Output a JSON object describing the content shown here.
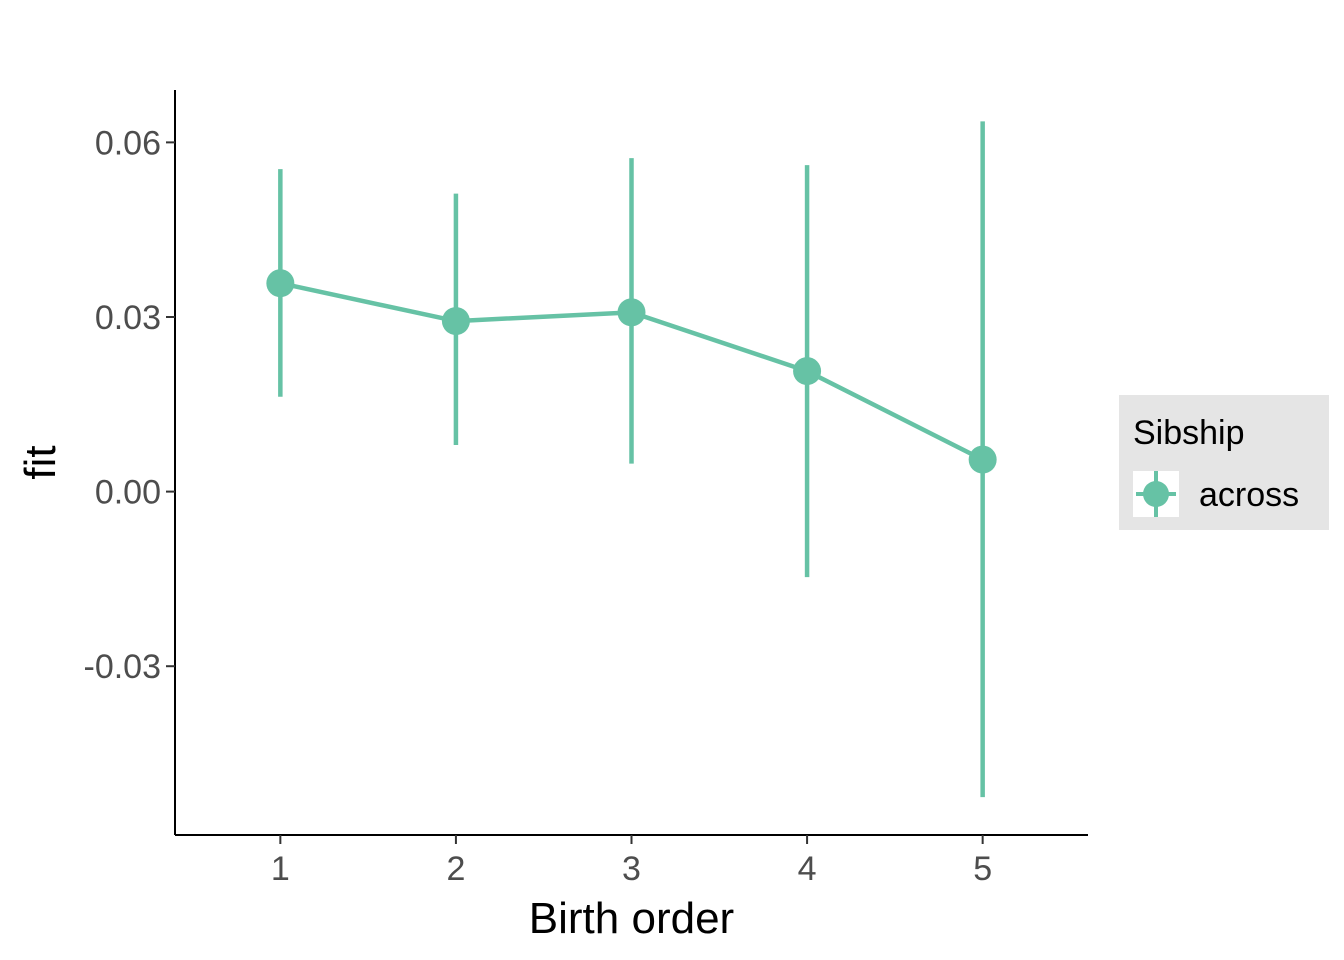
{
  "chart_data": {
    "type": "line",
    "xlabel": "Birth order",
    "ylabel": "fit",
    "x": [
      1,
      2,
      3,
      4,
      5
    ],
    "xlim": [
      0.4,
      5.6
    ],
    "ylim": [
      -0.059,
      0.069
    ],
    "yticks": [
      -0.03,
      0.0,
      0.03,
      0.06
    ],
    "ytick_labels": [
      "-0.03",
      "0.00",
      "0.03",
      "0.06"
    ],
    "xtick_labels": [
      "1",
      "2",
      "3",
      "4",
      "5"
    ],
    "grid": false,
    "legend": {
      "title": "Sibship",
      "position": "right"
    },
    "series": [
      {
        "name": "across",
        "color": "#66c2a5",
        "values": [
          0.0358,
          0.0293,
          0.0308,
          0.0207,
          0.0055
        ],
        "lower": [
          0.0163,
          0.008,
          0.0048,
          -0.0147,
          -0.0525
        ],
        "upper": [
          0.0554,
          0.0512,
          0.0573,
          0.0561,
          0.0636
        ]
      }
    ]
  }
}
